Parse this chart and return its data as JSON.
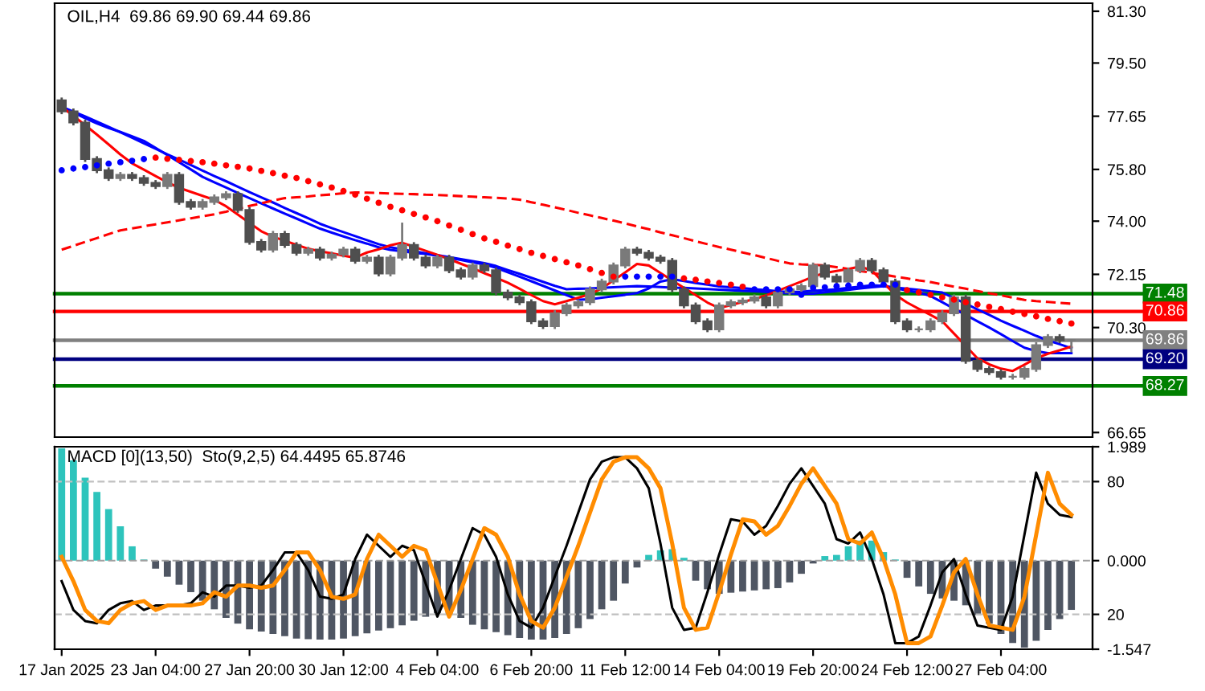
{
  "chart_data": [
    {
      "type": "candlestick",
      "title": "OIL,H4  69.86 69.90 69.44 69.86",
      "categories": [
        null,
        null,
        null,
        null,
        null,
        null,
        null,
        null,
        null,
        null,
        null,
        null,
        null,
        null,
        null,
        null,
        null,
        null,
        null,
        null,
        null,
        null,
        null,
        null,
        null,
        null,
        null,
        null,
        null,
        null,
        null,
        null,
        null,
        null,
        null,
        null,
        null,
        null,
        null,
        null,
        null,
        null,
        null,
        null,
        null,
        null,
        null,
        null,
        null,
        null,
        null,
        null,
        null,
        null,
        null,
        null,
        null,
        null,
        null,
        null,
        null,
        null,
        null,
        null,
        null,
        null,
        null,
        null,
        null,
        null,
        null,
        null,
        null,
        null,
        null,
        null,
        null,
        null,
        null,
        null,
        null,
        null,
        null,
        null,
        null,
        null,
        null
      ],
      "ohlc": [
        [
          78.2,
          78.3,
          77.72,
          77.82
        ],
        [
          77.82,
          77.92,
          77.33,
          77.43
        ],
        [
          77.43,
          77.53,
          76.06,
          76.16
        ],
        [
          76.16,
          76.26,
          75.67,
          75.77
        ],
        [
          75.77,
          75.87,
          75.4,
          75.5
        ],
        [
          75.5,
          75.71,
          75.4,
          75.61
        ],
        [
          75.61,
          75.71,
          75.4,
          75.5
        ],
        [
          75.5,
          75.6,
          75.23,
          75.33
        ],
        [
          75.33,
          75.43,
          75.12,
          75.22
        ],
        [
          75.22,
          75.71,
          75.12,
          75.61
        ],
        [
          75.61,
          75.71,
          74.57,
          74.67
        ],
        [
          74.67,
          74.77,
          74.4,
          74.5
        ],
        [
          74.5,
          74.77,
          74.4,
          74.67
        ],
        [
          74.67,
          74.93,
          74.57,
          74.83
        ],
        [
          74.83,
          75.04,
          74.73,
          74.94
        ],
        [
          74.94,
          75.04,
          74.29,
          74.39
        ],
        [
          74.39,
          74.49,
          73.18,
          73.28
        ],
        [
          73.28,
          73.38,
          72.91,
          73.01
        ],
        [
          73.01,
          73.66,
          72.91,
          73.56
        ],
        [
          73.56,
          73.66,
          73.07,
          73.17
        ],
        [
          73.17,
          73.27,
          72.8,
          72.9
        ],
        [
          72.9,
          73.11,
          72.8,
          73.01
        ],
        [
          73.01,
          73.11,
          72.63,
          72.73
        ],
        [
          72.73,
          72.94,
          72.63,
          72.84
        ],
        [
          72.84,
          73.11,
          72.74,
          73.01
        ],
        [
          73.01,
          73.11,
          72.52,
          72.62
        ],
        [
          72.62,
          72.83,
          72.52,
          72.73
        ],
        [
          72.73,
          72.83,
          72.08,
          72.18
        ],
        [
          72.18,
          72.83,
          72.08,
          72.73
        ],
        [
          72.73,
          73.95,
          72.63,
          73.17
        ],
        [
          73.17,
          73.27,
          72.63,
          72.73
        ],
        [
          72.73,
          72.83,
          72.36,
          72.46
        ],
        [
          72.46,
          72.83,
          72.36,
          72.73
        ],
        [
          72.73,
          72.83,
          72.19,
          72.29
        ],
        [
          72.29,
          72.39,
          71.97,
          72.07
        ],
        [
          72.07,
          72.56,
          71.97,
          72.46
        ],
        [
          72.46,
          72.56,
          72.19,
          72.29
        ],
        [
          72.29,
          72.39,
          71.42,
          71.52
        ],
        [
          71.52,
          71.62,
          71.25,
          71.35
        ],
        [
          71.35,
          71.45,
          71.08,
          71.18
        ],
        [
          71.18,
          71.28,
          70.42,
          70.52
        ],
        [
          70.52,
          70.62,
          70.25,
          70.35
        ],
        [
          70.35,
          70.9,
          70.25,
          70.8
        ],
        [
          70.8,
          71.17,
          70.7,
          71.07
        ],
        [
          71.07,
          71.28,
          70.97,
          71.18
        ],
        [
          71.18,
          71.73,
          71.08,
          71.63
        ],
        [
          71.63,
          72.0,
          71.53,
          71.9
        ],
        [
          71.9,
          72.56,
          71.8,
          72.46
        ],
        [
          72.46,
          73.11,
          72.36,
          73.01
        ],
        [
          73.01,
          73.11,
          72.8,
          72.9
        ],
        [
          72.9,
          73.0,
          72.63,
          72.73
        ],
        [
          72.73,
          72.83,
          72.52,
          72.62
        ],
        [
          72.62,
          72.72,
          71.53,
          71.63
        ],
        [
          71.63,
          71.73,
          70.97,
          71.07
        ],
        [
          71.07,
          71.17,
          70.42,
          70.52
        ],
        [
          70.52,
          70.62,
          70.14,
          70.24
        ],
        [
          70.24,
          71.17,
          70.14,
          71.07
        ],
        [
          71.07,
          71.28,
          70.97,
          71.18
        ],
        [
          71.18,
          71.34,
          71.08,
          71.24
        ],
        [
          71.24,
          71.45,
          71.14,
          71.35
        ],
        [
          71.35,
          71.45,
          70.97,
          71.07
        ],
        [
          71.07,
          71.62,
          70.97,
          71.52
        ],
        [
          71.52,
          71.73,
          71.42,
          71.63
        ],
        [
          71.63,
          71.84,
          71.53,
          71.74
        ],
        [
          71.74,
          72.56,
          71.64,
          72.46
        ],
        [
          72.46,
          72.56,
          71.97,
          72.07
        ],
        [
          72.07,
          72.17,
          71.8,
          71.9
        ],
        [
          71.9,
          72.39,
          71.8,
          72.29
        ],
        [
          72.29,
          72.72,
          72.19,
          72.62
        ],
        [
          72.62,
          72.72,
          72.19,
          72.29
        ],
        [
          72.29,
          72.39,
          71.8,
          71.9
        ],
        [
          71.9,
          72.0,
          70.42,
          70.52
        ],
        [
          70.52,
          70.62,
          70.14,
          70.24
        ],
        [
          70.24,
          70.34,
          70.14,
          70.24
        ],
        [
          70.24,
          70.62,
          70.14,
          70.52
        ],
        [
          70.52,
          70.9,
          70.42,
          70.8
        ],
        [
          70.8,
          71.45,
          70.7,
          71.35
        ],
        [
          71.35,
          71.45,
          69.04,
          69.14
        ],
        [
          69.14,
          69.24,
          68.76,
          68.86
        ],
        [
          68.86,
          68.96,
          68.65,
          68.75
        ],
        [
          68.75,
          68.85,
          68.49,
          68.59
        ],
        [
          68.59,
          68.69,
          68.49,
          68.59
        ],
        [
          68.59,
          68.96,
          68.49,
          68.86
        ],
        [
          68.86,
          69.79,
          68.76,
          69.69
        ],
        [
          69.69,
          70.07,
          69.59,
          69.97
        ],
        [
          69.97,
          70.07,
          69.76,
          69.86
        ],
        [
          69.86,
          69.9,
          69.44,
          69.86
        ]
      ],
      "colors": [
        "#4f4f4f",
        "#4f4f4f",
        "#4f4f4f",
        "#4f4f4f",
        "#4f4f4f",
        "#7a7a7a",
        "#4f4f4f",
        "#4f4f4f",
        "#4f4f4f",
        "#7a7a7a",
        "#4f4f4f",
        "#4f4f4f",
        "#7a7a7a",
        "#7a7a7a",
        "#7a7a7a",
        "#4f4f4f",
        "#4f4f4f",
        "#4f4f4f",
        "#7a7a7a",
        "#4f4f4f",
        "#4f4f4f",
        "#7a7a7a",
        "#4f4f4f",
        "#7a7a7a",
        "#7a7a7a",
        "#4f4f4f",
        "#7a7a7a",
        "#4f4f4f",
        "#7a7a7a",
        "#7a7a7a",
        "#4f4f4f",
        "#4f4f4f",
        "#7a7a7a",
        "#4f4f4f",
        "#4f4f4f",
        "#7a7a7a",
        "#4f4f4f",
        "#4f4f4f",
        "#4f4f4f",
        "#4f4f4f",
        "#4f4f4f",
        "#4f4f4f",
        "#7a7a7a",
        "#7a7a7a",
        "#7a7a7a",
        "#7a7a7a",
        "#7a7a7a",
        "#7a7a7a",
        "#7a7a7a",
        "#4f4f4f",
        "#4f4f4f",
        "#4f4f4f",
        "#4f4f4f",
        "#4f4f4f",
        "#4f4f4f",
        "#4f4f4f",
        "#7a7a7a",
        "#7a7a7a",
        "#7a7a7a",
        "#7a7a7a",
        "#4f4f4f",
        "#7a7a7a",
        "#7a7a7a",
        "#7a7a7a",
        "#7a7a7a",
        "#4f4f4f",
        "#4f4f4f",
        "#7a7a7a",
        "#7a7a7a",
        "#4f4f4f",
        "#4f4f4f",
        "#4f4f4f",
        "#4f4f4f",
        "#7a7a7a",
        "#7a7a7a",
        "#7a7a7a",
        "#7a7a7a",
        "#4f4f4f",
        "#4f4f4f",
        "#4f4f4f",
        "#4f4f4f",
        "#7a7a7a",
        "#7a7a7a",
        "#7a7a7a",
        "#7a7a7a",
        "#4f4f4f",
        "#7a7a7a"
      ],
      "series": [
        {
          "type": "line",
          "color": "#0000ff",
          "values": [
            77.98,
            77.78,
            77.58,
            77.4,
            77.24,
            77.1,
            76.95,
            76.79,
            76.55,
            76.3,
            76.05,
            75.8,
            75.54,
            75.35,
            75.17,
            74.98,
            74.8,
            74.62,
            74.44,
            74.26,
            74.09,
            73.91,
            73.74,
            73.6,
            73.47,
            73.34,
            73.22,
            73.09,
            73.0,
            72.95,
            72.9,
            72.86,
            72.8,
            72.72,
            72.65,
            72.57,
            72.5,
            72.38,
            72.22,
            72.07,
            71.91,
            71.75,
            71.59,
            71.43,
            71.27,
            71.28,
            71.34,
            71.39,
            71.44,
            71.5,
            71.66,
            71.9,
            71.98,
            71.92,
            71.85,
            71.79,
            71.73,
            71.7,
            71.67,
            71.63,
            71.6,
            71.56,
            71.53,
            71.55,
            71.58,
            71.6,
            71.63,
            71.68,
            71.72,
            71.77,
            71.75,
            71.67,
            71.59,
            71.52,
            71.4,
            71.18,
            70.96,
            70.74,
            70.52,
            70.3,
            70.07,
            69.83,
            69.6,
            69.48,
            69.41,
            69.41,
            69.41
          ]
        },
        {
          "type": "line",
          "color": "#0000ff",
          "values": [
            77.98,
            77.81,
            77.64,
            77.46,
            77.28,
            77.09,
            76.9,
            76.71,
            76.52,
            76.32,
            76.14,
            75.95,
            75.76,
            75.57,
            75.39,
            75.2,
            75.01,
            74.83,
            74.65,
            74.46,
            74.28,
            74.1,
            73.91,
            73.76,
            73.62,
            73.48,
            73.34,
            73.2,
            73.09,
            73.02,
            72.95,
            72.88,
            72.82,
            72.75,
            72.68,
            72.61,
            72.54,
            72.44,
            72.3,
            72.17,
            72.03,
            71.89,
            71.75,
            71.63,
            71.65,
            71.66,
            71.68,
            71.7,
            71.72,
            71.74,
            71.73,
            71.71,
            71.69,
            71.68,
            71.66,
            71.64,
            71.62,
            71.6,
            71.58,
            71.56,
            71.54,
            71.51,
            71.49,
            71.47,
            71.48,
            71.53,
            71.57,
            71.61,
            71.66,
            71.7,
            71.74,
            71.69,
            71.65,
            71.61,
            71.56,
            71.52,
            71.32,
            71.13,
            70.93,
            70.74,
            70.54,
            70.36,
            70.19,
            70.01,
            69.85,
            69.72,
            69.58
          ]
        },
        {
          "type": "line",
          "color": "#ff0000",
          "values": [
            77.98,
            77.66,
            77.34,
            77.01,
            76.67,
            76.32,
            76.01,
            75.79,
            75.57,
            75.35,
            75.16,
            75.02,
            74.88,
            74.74,
            74.52,
            74.23,
            73.94,
            73.65,
            73.46,
            73.32,
            73.18,
            73.04,
            72.95,
            72.88,
            72.8,
            72.73,
            72.91,
            73.02,
            73.16,
            73.25,
            73.11,
            72.97,
            72.83,
            72.68,
            72.52,
            72.36,
            72.19,
            72.03,
            71.86,
            71.65,
            71.43,
            71.22,
            71.11,
            71.22,
            71.34,
            71.46,
            71.66,
            71.94,
            72.22,
            72.51,
            72.46,
            72.2,
            71.94,
            71.68,
            71.43,
            71.17,
            70.98,
            71.08,
            71.19,
            71.29,
            71.42,
            71.58,
            71.74,
            71.9,
            72.07,
            72.2,
            72.27,
            72.34,
            72.42,
            72.29,
            71.86,
            71.44,
            71.17,
            70.95,
            70.74,
            70.52,
            70.09,
            69.66,
            69.23,
            69.02,
            68.87,
            68.79,
            69.01,
            69.23,
            69.39,
            69.51,
            69.64
          ]
        },
        {
          "type": "line",
          "color": "#ff0000",
          "line_style": "dashed",
          "values": [
            73.01,
            73.14,
            73.28,
            73.41,
            73.55,
            73.68,
            73.75,
            73.82,
            73.89,
            73.96,
            74.03,
            74.1,
            74.17,
            74.24,
            74.33,
            74.43,
            74.53,
            74.62,
            74.72,
            74.8,
            74.83,
            74.86,
            74.9,
            74.93,
            74.97,
            75.0,
            74.99,
            74.98,
            74.96,
            74.95,
            74.94,
            74.92,
            74.91,
            74.89,
            74.87,
            74.85,
            74.83,
            74.81,
            74.79,
            74.75,
            74.66,
            74.57,
            74.48,
            74.39,
            74.29,
            74.2,
            74.11,
            74.02,
            73.92,
            73.82,
            73.72,
            73.61,
            73.51,
            73.41,
            73.3,
            73.2,
            73.1,
            73.01,
            72.91,
            72.82,
            72.72,
            72.62,
            72.53,
            72.5,
            72.48,
            72.46,
            72.4,
            72.34,
            72.27,
            72.2,
            72.14,
            72.07,
            72.01,
            71.94,
            71.88,
            71.8,
            71.72,
            71.65,
            71.57,
            71.49,
            71.42,
            71.34,
            71.26,
            71.22,
            71.19,
            71.16,
            71.13
          ]
        },
        {
          "type": "scatter",
          "marker": "circle",
          "values": [
            75.77,
            75.83,
            75.88,
            75.94,
            76.0,
            76.05,
            76.1,
            76.16,
            76.21,
            76.17,
            76.13,
            76.09,
            76.05,
            76.0,
            75.94,
            75.89,
            75.83,
            75.75,
            75.67,
            75.58,
            75.5,
            75.39,
            75.28,
            75.17,
            75.05,
            74.92,
            74.78,
            74.64,
            74.5,
            74.38,
            74.25,
            74.13,
            74.0,
            73.85,
            73.7,
            73.55,
            73.4,
            73.28,
            73.15,
            73.03,
            72.9,
            72.79,
            72.68,
            72.57,
            72.46,
            72.33,
            72.2,
            72.07,
            72.07,
            72.07,
            72.07,
            72.07,
            72.07,
            72.01,
            71.96,
            71.9,
            71.85,
            71.79,
            71.72,
            71.63,
            71.63,
            71.63,
            71.63,
            71.44,
            71.68,
            71.7,
            71.74,
            71.76,
            71.79,
            71.79,
            71.79,
            71.79,
            71.6,
            71.52,
            71.44,
            71.35,
            71.27,
            71.18,
            71.1,
            71.02,
            70.94,
            70.85,
            70.77,
            70.69,
            70.6,
            70.52,
            70.44
          ],
          "colors": [
            "#0000ff",
            "#0000ff",
            "#0000ff",
            "#0000ff",
            "#0000ff",
            "#0000ff",
            "#0000ff",
            "#0000ff",
            "#ff0000",
            "#ff0000",
            "#ff0000",
            "#ff0000",
            "#ff0000",
            "#ff0000",
            "#ff0000",
            "#ff0000",
            "#ff0000",
            "#ff0000",
            "#ff0000",
            "#ff0000",
            "#ff0000",
            "#ff0000",
            "#ff0000",
            "#ff0000",
            "#ff0000",
            "#ff0000",
            "#ff0000",
            "#ff0000",
            "#ff0000",
            "#ff0000",
            "#ff0000",
            "#ff0000",
            "#ff0000",
            "#ff0000",
            "#ff0000",
            "#ff0000",
            "#ff0000",
            "#ff0000",
            "#ff0000",
            "#ff0000",
            "#ff0000",
            "#ff0000",
            "#ff0000",
            "#ff0000",
            "#ff0000",
            "#ff0000",
            "#ff0000",
            "#ff0000",
            "#0000ff",
            "#0000ff",
            "#0000ff",
            "#0000ff",
            "#0000ff",
            "#ff0000",
            "#ff0000",
            "#ff0000",
            "#ff0000",
            "#ff0000",
            "#ff0000",
            "#0000ff",
            "#0000ff",
            "#0000ff",
            "#0000ff",
            "#0000ff",
            "#0000ff",
            "#0000ff",
            "#0000ff",
            "#0000ff",
            "#0000ff",
            "#0000ff",
            "#0000ff",
            "#0000ff",
            "#ff0000",
            "#ff0000",
            "#ff0000",
            "#ff0000",
            "#ff0000",
            "#ff0000",
            "#ff0000",
            "#ff0000",
            "#ff0000",
            "#ff0000",
            "#ff0000",
            "#ff0000",
            "#ff0000",
            "#ff0000",
            "#ff0000"
          ]
        }
      ],
      "ylim": [
        66.49,
        81.58
      ],
      "yticks": [
        {
          "value": 81.3,
          "label": "81.30"
        },
        {
          "value": 79.5,
          "label": "79.50"
        },
        77.65,
        {
          "value": 75.8,
          "label": "75.80"
        },
        {
          "value": 74,
          "label": "74.00"
        },
        72.15,
        {
          "value": 70.3,
          "label": "70.30"
        },
        66.65
      ],
      "tick_labels": "y",
      "ref_lines": [
        {
          "axis": "y",
          "value": 71.48,
          "label": "71.48",
          "color": "#008000"
        },
        {
          "axis": "y",
          "value": 70.86,
          "label": "70.86",
          "color": "#ff0000"
        },
        {
          "axis": "y",
          "value": 69.86,
          "label": "69.86",
          "color": "#808080"
        },
        {
          "axis": "y",
          "value": 69.2,
          "label": "69.20",
          "color": "#000080"
        },
        {
          "axis": "y",
          "value": 68.27,
          "label": "68.27",
          "color": "#008000"
        }
      ]
    },
    {
      "type": "bar",
      "title": "MACD [0](13,50)  Sto(9,2,5) 64.4495 65.8746",
      "categories": [
        "17 Jan 2025",
        null,
        null,
        null,
        null,
        null,
        null,
        null,
        "23 Jan 04:00",
        null,
        null,
        null,
        null,
        null,
        null,
        null,
        "27 Jan 20:00",
        null,
        null,
        null,
        null,
        null,
        null,
        null,
        "30 Jan 12:00",
        null,
        null,
        null,
        null,
        null,
        null,
        null,
        "4 Feb 04:00",
        null,
        null,
        null,
        null,
        null,
        null,
        null,
        "6 Feb 20:00",
        null,
        null,
        null,
        null,
        null,
        null,
        null,
        "11 Feb 12:00",
        null,
        null,
        null,
        null,
        null,
        null,
        null,
        "14 Feb 04:00",
        null,
        null,
        null,
        null,
        null,
        null,
        null,
        "19 Feb 20:00",
        null,
        null,
        null,
        null,
        null,
        null,
        null,
        "24 Feb 12:00",
        null,
        null,
        null,
        null,
        null,
        null,
        null,
        "27 Feb 04:00",
        null,
        null,
        null,
        null,
        null,
        null
      ],
      "series": [
        {
          "type": "bar",
          "values": [
            1.96,
            1.75,
            1.45,
            1.2,
            0.9,
            0.6,
            0.25,
            0.02,
            -0.14,
            -0.28,
            -0.42,
            -0.55,
            -0.7,
            -0.85,
            -1.0,
            -1.1,
            -1.2,
            -1.24,
            -1.28,
            -1.32,
            -1.36,
            -1.37,
            -1.38,
            -1.38,
            -1.36,
            -1.32,
            -1.27,
            -1.22,
            -1.18,
            -1.13,
            -1.05,
            -0.98,
            -0.92,
            -0.95,
            -1.0,
            -1.12,
            -1.2,
            -1.25,
            -1.3,
            -1.35,
            -1.38,
            -1.38,
            -1.35,
            -1.28,
            -1.18,
            -1.02,
            -0.85,
            -0.7,
            -0.4,
            -0.12,
            0.1,
            0.18,
            0.2,
            0.05,
            -0.35,
            -0.5,
            -0.58,
            -0.56,
            -0.54,
            -0.52,
            -0.5,
            -0.48,
            -0.38,
            -0.23,
            -0.05,
            0.08,
            0.1,
            0.25,
            0.35,
            0.35,
            0.15,
            0.02,
            -0.3,
            -0.45,
            -0.58,
            -0.66,
            -0.7,
            -0.78,
            -0.95,
            -1.1,
            -1.28,
            -1.44,
            -1.52,
            -1.4,
            -1.21,
            -1.02,
            -0.86
          ],
          "colors": [
            "#2ec4bc",
            "#2ec4bc",
            "#2ec4bc",
            "#2ec4bc",
            "#2ec4bc",
            "#2ec4bc",
            "#2ec4bc",
            "#2ec4bc",
            "#4f5663",
            "#4f5663",
            "#4f5663",
            "#4f5663",
            "#4f5663",
            "#4f5663",
            "#4f5663",
            "#4f5663",
            "#4f5663",
            "#4f5663",
            "#4f5663",
            "#4f5663",
            "#4f5663",
            "#4f5663",
            "#4f5663",
            "#4f5663",
            "#4f5663",
            "#4f5663",
            "#4f5663",
            "#4f5663",
            "#4f5663",
            "#4f5663",
            "#4f5663",
            "#4f5663",
            "#4f5663",
            "#4f5663",
            "#4f5663",
            "#4f5663",
            "#4f5663",
            "#4f5663",
            "#4f5663",
            "#4f5663",
            "#4f5663",
            "#4f5663",
            "#4f5663",
            "#4f5663",
            "#4f5663",
            "#4f5663",
            "#4f5663",
            "#4f5663",
            "#4f5663",
            "#4f5663",
            "#2ec4bc",
            "#2ec4bc",
            "#2ec4bc",
            "#2ec4bc",
            "#4f5663",
            "#4f5663",
            "#4f5663",
            "#4f5663",
            "#4f5663",
            "#4f5663",
            "#4f5663",
            "#4f5663",
            "#4f5663",
            "#4f5663",
            "#4f5663",
            "#2ec4bc",
            "#2ec4bc",
            "#2ec4bc",
            "#2ec4bc",
            "#2ec4bc",
            "#2ec4bc",
            "#2ec4bc",
            "#4f5663",
            "#4f5663",
            "#4f5663",
            "#4f5663",
            "#4f5663",
            "#4f5663",
            "#4f5663",
            "#4f5663",
            "#4f5663",
            "#4f5663",
            "#4f5663",
            "#4f5663",
            "#4f5663",
            "#4f5663",
            "#4f5663"
          ]
        },
        {
          "type": "line",
          "axis": "y2",
          "color": "#000000",
          "values": [
            35,
            22,
            17,
            16,
            22,
            25,
            26,
            22,
            24,
            24,
            24,
            25,
            30,
            28,
            33,
            33,
            32,
            33,
            40,
            48,
            48,
            40,
            28,
            27,
            29,
            45,
            56,
            51,
            46,
            51,
            49,
            34,
            19,
            31,
            45,
            59,
            56,
            46,
            29,
            17,
            14,
            23,
            37,
            51,
            66,
            81,
            89,
            91,
            91,
            86,
            77,
            52,
            23,
            13,
            14,
            30,
            47,
            63,
            62,
            56,
            60,
            69,
            79,
            86,
            78,
            70,
            54,
            52,
            57,
            45,
            29,
            7,
            7,
            10,
            24,
            39,
            45,
            29,
            15,
            14,
            13,
            28,
            56,
            84,
            70,
            65,
            64
          ]
        },
        {
          "type": "line",
          "axis": "y2",
          "color": "#ff8c00",
          "values": [
            46,
            35,
            22,
            17,
            16,
            22,
            25,
            26,
            22,
            24,
            24,
            24,
            25,
            30,
            28,
            33,
            33,
            32,
            33,
            40,
            48,
            48,
            40,
            28,
            27,
            29,
            45,
            56,
            51,
            46,
            51,
            49,
            34,
            19,
            31,
            45,
            59,
            56,
            46,
            29,
            17,
            14,
            23,
            37,
            51,
            66,
            81,
            89,
            91,
            91,
            86,
            77,
            52,
            23,
            13,
            14,
            30,
            47,
            63,
            62,
            56,
            60,
            69,
            79,
            86,
            78,
            70,
            54,
            52,
            57,
            45,
            29,
            7,
            7,
            10,
            24,
            39,
            45,
            29,
            15,
            14,
            13,
            28,
            56,
            84,
            70,
            65
          ]
        }
      ],
      "ylim": [
        -1.547,
        1.989
      ],
      "yticks": [
        1.989,
        {
          "value": 0,
          "label": "0.000"
        },
        -1.547
      ],
      "y2lim": [
        4.25,
        95.75
      ],
      "y2ticks": [
        80,
        20
      ],
      "ref_lines": [
        {
          "axis": "y",
          "value": 0,
          "label": null,
          "color": "#a0a0a0",
          "line_style": "dashed"
        },
        {
          "axis": "y2",
          "value": 80,
          "label": null,
          "color": "#c0c0c0",
          "line_style": "dashed"
        },
        {
          "axis": "y2",
          "value": 20,
          "label": null,
          "color": "#c0c0c0",
          "line_style": "dashed"
        }
      ]
    }
  ]
}
